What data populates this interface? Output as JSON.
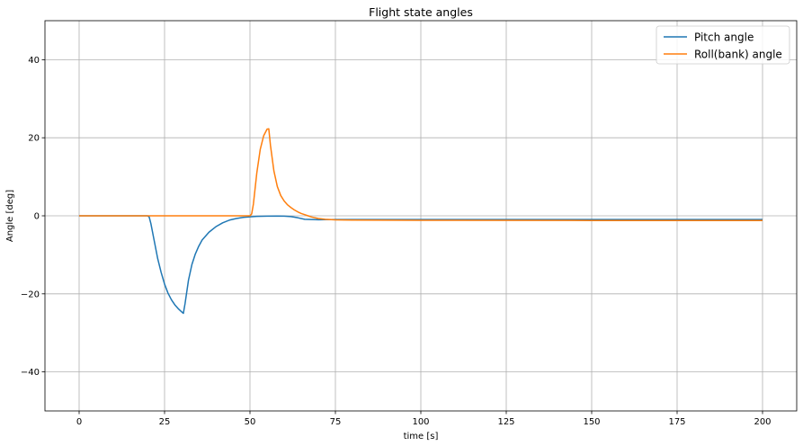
{
  "chart_data": {
    "type": "line",
    "title": "Flight state angles",
    "xlabel": "time [s]",
    "ylabel": "Angle [deg]",
    "xlim": [
      -10,
      210
    ],
    "ylim": [
      -50,
      50
    ],
    "xticks": [
      0,
      25,
      50,
      75,
      100,
      125,
      150,
      175,
      200
    ],
    "yticks": [
      -40,
      -20,
      0,
      20,
      40
    ],
    "grid": true,
    "legend_position": "top-right",
    "series": [
      {
        "name": "Pitch angle",
        "color": "#1f77b4",
        "x": [
          0,
          20,
          20.5,
          21,
          22,
          23,
          24,
          25,
          26,
          27,
          28,
          29,
          30,
          30.5,
          31,
          32,
          33,
          34,
          35,
          36,
          38,
          40,
          42,
          44,
          46,
          48,
          50,
          52,
          55,
          58,
          60,
          62,
          64,
          66,
          70,
          75,
          80,
          100,
          150,
          200
        ],
        "y": [
          0,
          0,
          -0.3,
          -2,
          -6.5,
          -11,
          -14.5,
          -17.5,
          -19.8,
          -21.5,
          -22.8,
          -23.8,
          -24.6,
          -25,
          -22.5,
          -16.5,
          -12.5,
          -9.8,
          -7.8,
          -6.2,
          -4.2,
          -2.8,
          -1.8,
          -1.1,
          -0.7,
          -0.4,
          -0.25,
          -0.15,
          -0.1,
          -0.05,
          -0.1,
          -0.2,
          -0.5,
          -0.9,
          -1.0,
          -0.95,
          -0.95,
          -0.95,
          -0.95,
          -0.95
        ]
      },
      {
        "name": "Roll(bank) angle",
        "color": "#ff7f0e",
        "x": [
          0,
          50,
          50.5,
          51,
          52,
          53,
          54,
          55,
          55.5,
          56,
          57,
          58,
          59,
          60,
          61,
          62,
          63,
          64,
          65,
          66,
          67,
          68,
          70,
          72,
          75,
          80,
          100,
          150,
          200
        ],
        "y": [
          0,
          0,
          0.5,
          3,
          11,
          17,
          20.5,
          22.2,
          22.3,
          18,
          11.5,
          7.5,
          5.2,
          3.8,
          2.8,
          2.1,
          1.5,
          1.0,
          0.6,
          0.3,
          0.0,
          -0.3,
          -0.7,
          -0.9,
          -1.05,
          -1.1,
          -1.15,
          -1.2,
          -1.2
        ]
      }
    ]
  }
}
